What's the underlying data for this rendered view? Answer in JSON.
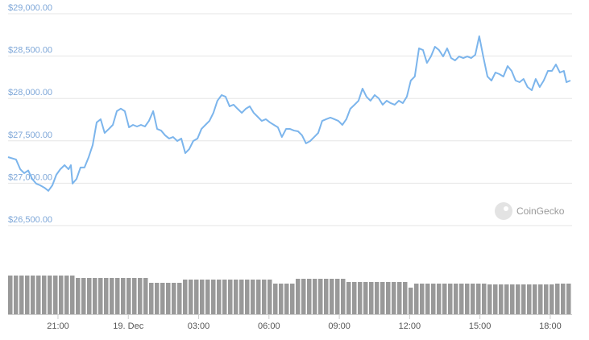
{
  "chart_data": [
    {
      "type": "line",
      "color": "#7cb5ec",
      "grid": true,
      "watermark": "CoinGecko",
      "xlim": [
        -5.13,
        18.93
      ],
      "ylim": [
        26300,
        29100
      ],
      "yticks": [
        {
          "value": 26500,
          "label": "$26,500.00"
        },
        {
          "value": 27000,
          "label": "$27,000.00"
        },
        {
          "value": 27500,
          "label": "$27,500.00"
        },
        {
          "value": 28000,
          "label": "$28,000.00"
        },
        {
          "value": 28500,
          "label": "$28,500.00"
        },
        {
          "value": 29000,
          "label": "$29,000.00"
        }
      ],
      "xticks": [
        {
          "value": -3,
          "label": "21:00"
        },
        {
          "value": 0,
          "label": "19. Dec"
        },
        {
          "value": 3,
          "label": "03:00"
        },
        {
          "value": 6,
          "label": "06:00"
        },
        {
          "value": 9,
          "label": "09:00"
        },
        {
          "value": 12,
          "label": "12:00"
        },
        {
          "value": 15,
          "label": "15:00"
        },
        {
          "value": 18,
          "label": "18:00"
        }
      ],
      "x": [
        -5.13,
        -4.79,
        -4.61,
        -4.44,
        -4.27,
        -4.1,
        -3.93,
        -3.76,
        -3.58,
        -3.41,
        -3.24,
        -3.07,
        -2.9,
        -2.72,
        -2.55,
        -2.45,
        -2.38,
        -2.21,
        -2.04,
        -1.87,
        -1.69,
        -1.52,
        -1.35,
        -1.18,
        -1.01,
        -0.83,
        -0.66,
        -0.49,
        -0.32,
        -0.15,
        0.03,
        0.2,
        0.37,
        0.54,
        0.71,
        0.88,
        1.06,
        1.23,
        1.4,
        1.57,
        1.74,
        1.91,
        2.09,
        2.26,
        2.43,
        2.6,
        2.77,
        2.95,
        3.12,
        3.29,
        3.46,
        3.63,
        3.8,
        3.98,
        4.15,
        4.32,
        4.49,
        4.66,
        4.84,
        5.01,
        5.18,
        5.35,
        5.52,
        5.69,
        5.87,
        6.04,
        6.21,
        6.38,
        6.55,
        6.73,
        6.9,
        7.07,
        7.24,
        7.41,
        7.58,
        7.76,
        7.93,
        8.1,
        8.27,
        8.44,
        8.62,
        8.79,
        8.96,
        9.13,
        9.3,
        9.47,
        9.65,
        9.82,
        9.99,
        10.16,
        10.33,
        10.51,
        10.68,
        10.85,
        11.02,
        11.19,
        11.36,
        11.54,
        11.71,
        11.88,
        12.05,
        12.22,
        12.4,
        12.57,
        12.74,
        12.91,
        13.08,
        13.25,
        13.43,
        13.6,
        13.77,
        13.94,
        14.11,
        14.29,
        14.46,
        14.63,
        14.8,
        14.97,
        15.14,
        15.32,
        15.49,
        15.66,
        15.83,
        16.0,
        16.18,
        16.35,
        16.52,
        16.69,
        16.86,
        17.03,
        17.21,
        17.38,
        17.55,
        17.72,
        17.9,
        18.07,
        18.24,
        18.41,
        18.58,
        18.69,
        18.86
      ],
      "values": [
        27308,
        27280,
        27165,
        27118,
        27150,
        27050,
        26995,
        26975,
        26947,
        26910,
        26975,
        27100,
        27165,
        27213,
        27165,
        27213,
        26995,
        27050,
        27185,
        27185,
        27308,
        27450,
        27717,
        27755,
        27593,
        27640,
        27688,
        27850,
        27880,
        27850,
        27660,
        27688,
        27669,
        27688,
        27669,
        27735,
        27850,
        27640,
        27621,
        27565,
        27527,
        27545,
        27498,
        27527,
        27355,
        27403,
        27498,
        27527,
        27640,
        27688,
        27735,
        27830,
        27973,
        28040,
        28020,
        27907,
        27926,
        27878,
        27830,
        27878,
        27907,
        27830,
        27783,
        27735,
        27755,
        27717,
        27688,
        27660,
        27545,
        27640,
        27640,
        27621,
        27612,
        27565,
        27470,
        27498,
        27545,
        27593,
        27735,
        27755,
        27774,
        27755,
        27735,
        27688,
        27755,
        27878,
        27926,
        27973,
        28116,
        28020,
        27973,
        28040,
        28002,
        27926,
        27973,
        27945,
        27926,
        27973,
        27945,
        28020,
        28211,
        28259,
        28591,
        28572,
        28420,
        28496,
        28610,
        28572,
        28496,
        28591,
        28477,
        28449,
        28496,
        28477,
        28496,
        28477,
        28515,
        28734,
        28496,
        28259,
        28211,
        28306,
        28287,
        28259,
        28382,
        28325,
        28211,
        28192,
        28230,
        28135,
        28097,
        28230,
        28135,
        28211,
        28325,
        28325,
        28401,
        28306,
        28325,
        28192,
        28211
      ]
    },
    {
      "type": "bar",
      "color": "#999999",
      "ylim": [
        0,
        50
      ],
      "values": [
        48,
        48,
        48,
        48,
        48,
        48,
        48,
        48,
        48,
        48,
        48,
        48,
        45,
        45,
        45,
        45,
        45,
        45,
        45,
        45,
        45,
        45,
        45,
        45,
        45,
        39,
        39,
        39,
        39,
        39,
        39,
        43,
        43,
        43,
        43,
        43,
        43,
        43,
        43,
        43,
        43,
        43,
        43,
        43,
        43,
        43,
        43,
        38,
        38,
        38,
        38,
        44,
        44,
        44,
        44,
        44,
        44,
        44,
        44,
        44,
        40,
        40,
        40,
        40,
        40,
        40,
        40,
        40,
        40,
        40,
        40,
        33,
        38,
        38,
        38,
        38,
        38,
        38,
        38,
        38,
        38,
        38,
        38,
        38,
        38,
        37,
        37,
        37,
        37,
        37,
        37,
        37,
        37,
        37,
        37,
        37,
        37,
        38,
        38,
        38
      ]
    }
  ]
}
